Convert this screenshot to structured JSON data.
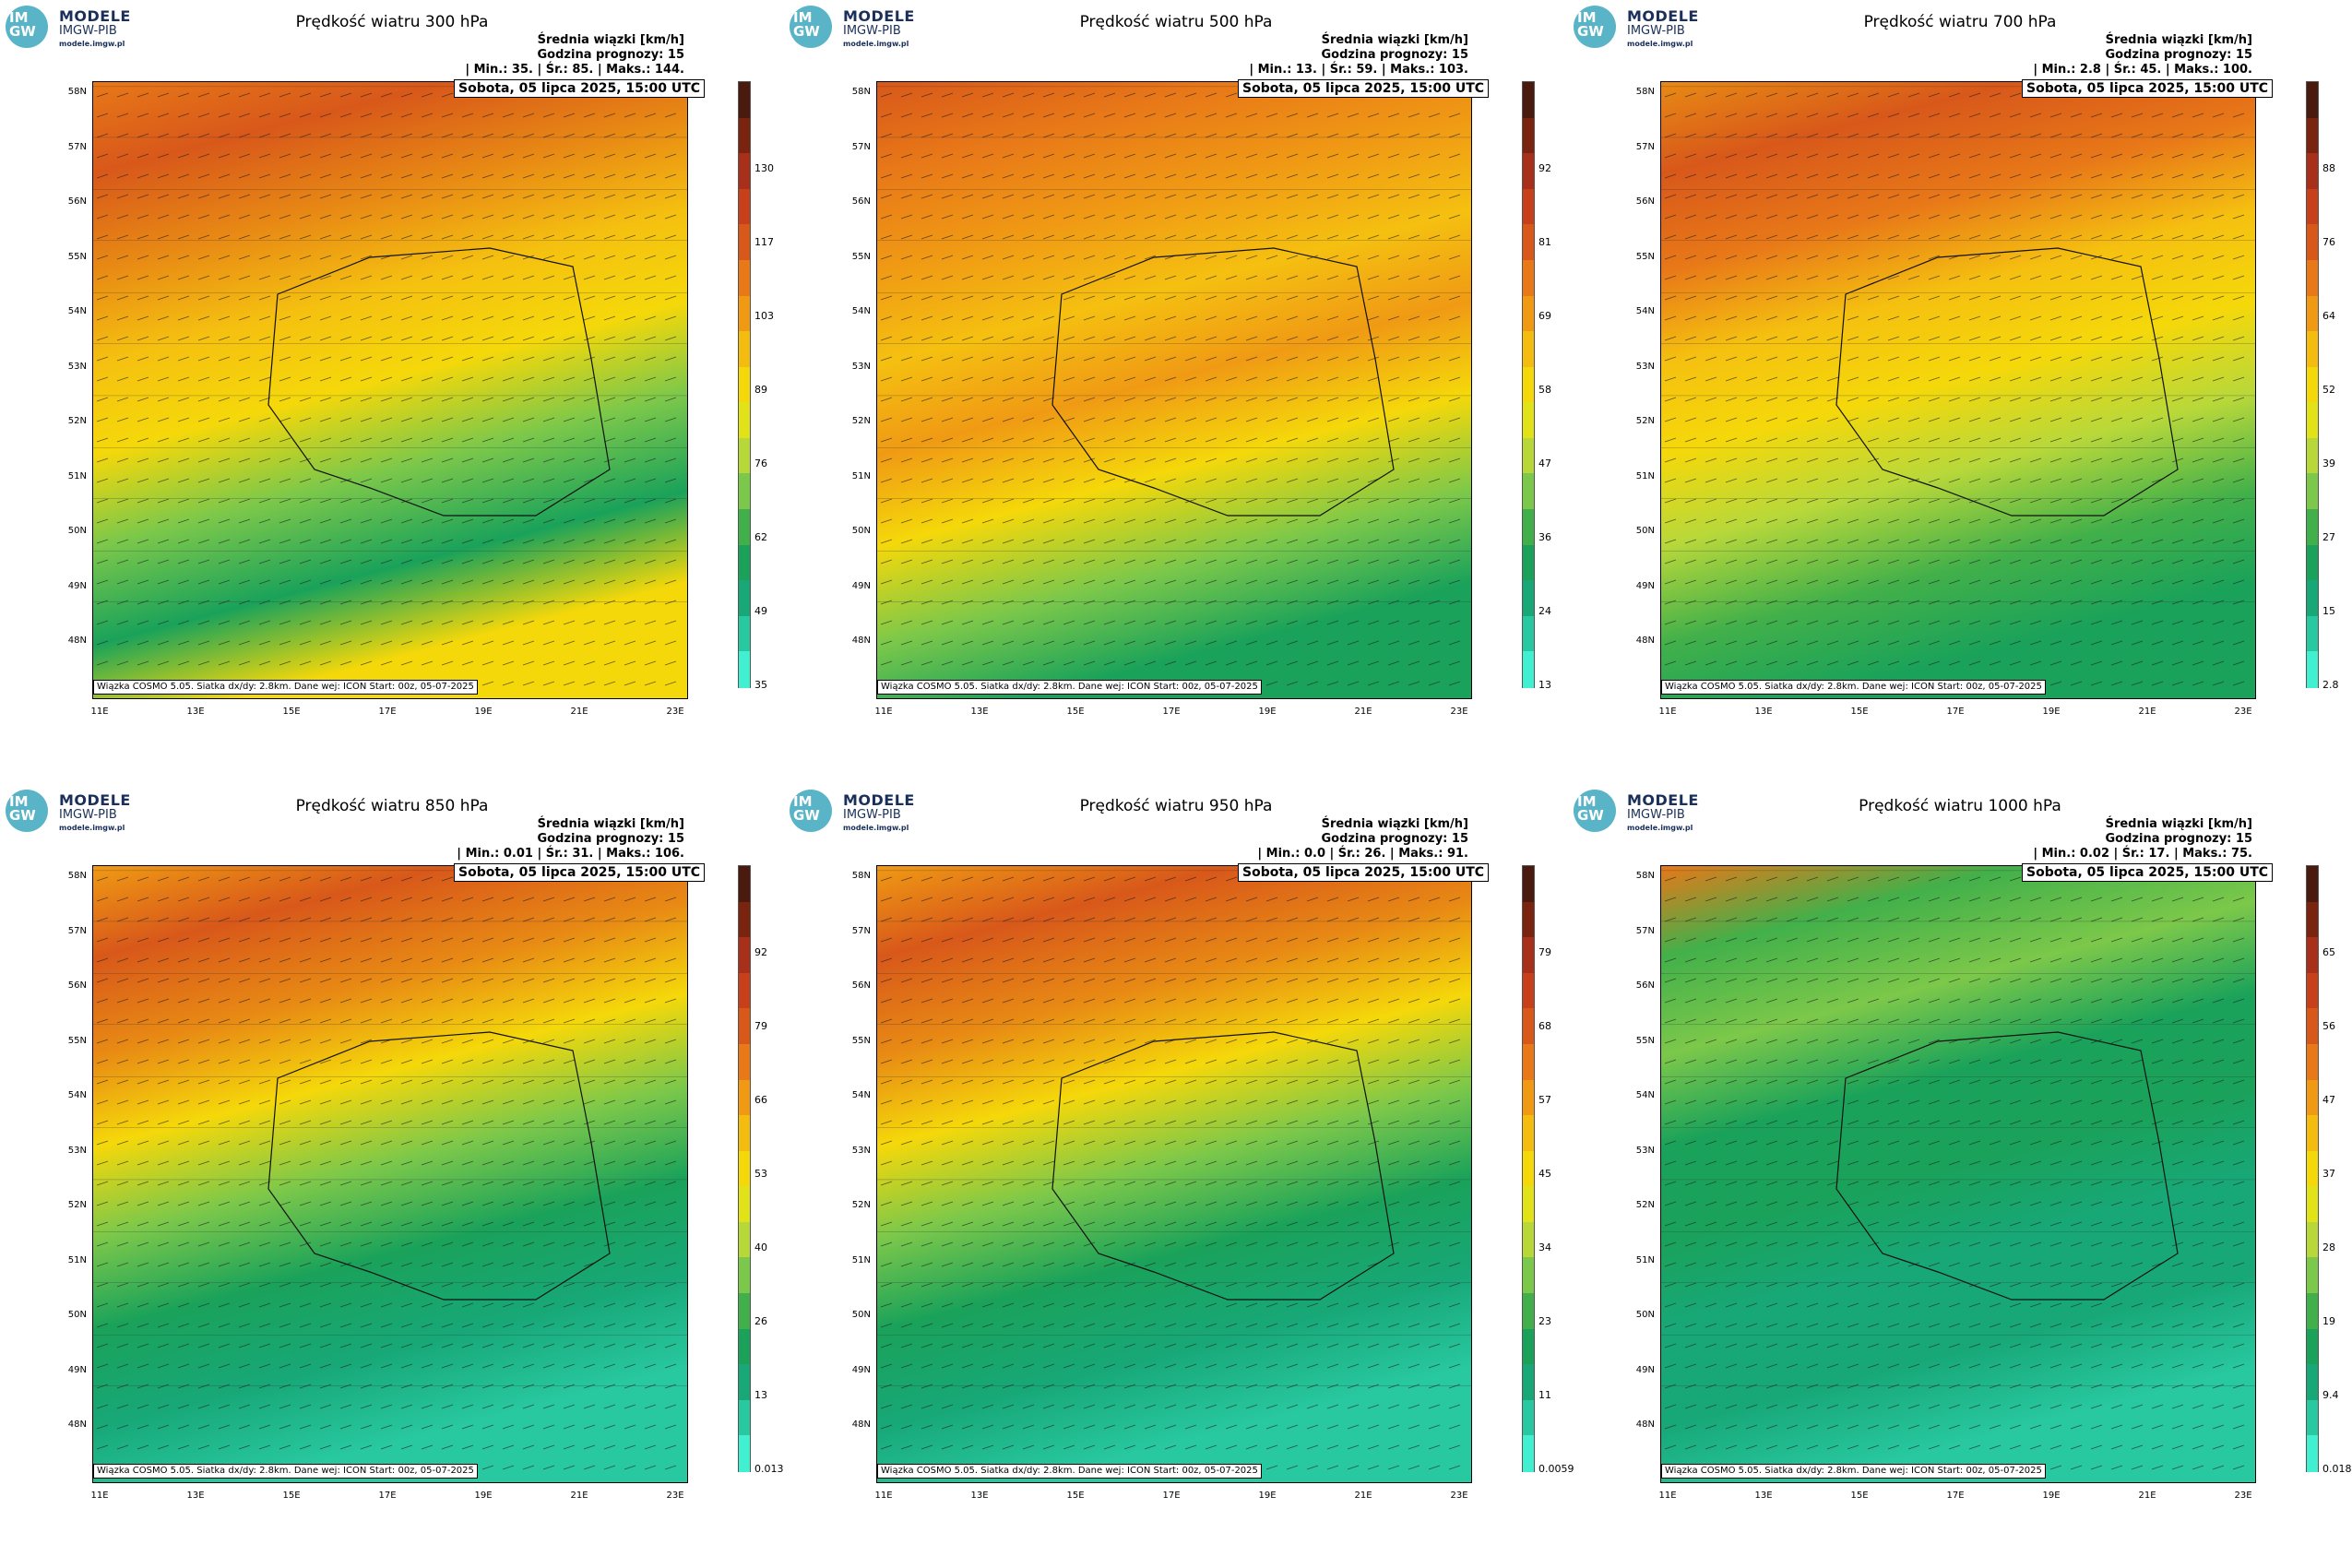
{
  "logo": {
    "brand": "MODELE",
    "org": "IMGW-PIB",
    "url": "modele.imgw.pl",
    "mark": "IM GW"
  },
  "common": {
    "mean_label": "Średnia wiązki [km/h]",
    "forecast_hour": "Godzina prognozy: 15",
    "date": "Sobota, 05 lipca 2025, 15:00 UTC",
    "footer": "Wiązka COSMO 5.05. Siatka dx/dy: 2.8km. Dane wej: ICON Start: 00z, 05-07-2025",
    "lat_labels": [
      "58N",
      "57N",
      "56N",
      "55N",
      "54N",
      "53N",
      "52N",
      "51N",
      "50N",
      "49N",
      "48N"
    ],
    "lon_labels": [
      "11E",
      "13E",
      "15E",
      "17E",
      "19E",
      "21E",
      "23E"
    ]
  },
  "panels": [
    {
      "title": "Prędkość wiatru 300 hPa",
      "stats": "| Min.: 35. | Śr.: 85. | Maks.: 144.",
      "ticks": [
        "130",
        "117",
        "103",
        "89",
        "76",
        "62",
        "49",
        "35"
      ]
    },
    {
      "title": "Prędkość wiatru 500 hPa",
      "stats": "| Min.: 13. | Śr.: 59. | Maks.: 103.",
      "ticks": [
        "92",
        "81",
        "69",
        "58",
        "47",
        "36",
        "24",
        "13"
      ]
    },
    {
      "title": "Prędkość wiatru 700 hPa",
      "stats": "| Min.: 2.8 | Śr.: 45. | Maks.: 100.",
      "ticks": [
        "88",
        "76",
        "64",
        "52",
        "39",
        "27",
        "15",
        "2.8"
      ]
    },
    {
      "title": "Prędkość wiatru 850 hPa",
      "stats": "| Min.: 0.01 | Śr.: 31. | Maks.: 106.",
      "ticks": [
        "92",
        "79",
        "66",
        "53",
        "40",
        "26",
        "13",
        "0.013"
      ]
    },
    {
      "title": "Prędkość wiatru 950 hPa",
      "stats": "| Min.: 0.0 | Śr.: 26. | Maks.: 91.",
      "ticks": [
        "79",
        "68",
        "57",
        "45",
        "34",
        "23",
        "11",
        "0.0059"
      ]
    },
    {
      "title": "Prędkość wiatru 1000 hPa",
      "stats": "| Min.: 0.02 | Śr.: 17. | Maks.: 75.",
      "ticks": [
        "65",
        "56",
        "47",
        "37",
        "28",
        "19",
        "9.4",
        "0.018"
      ]
    }
  ],
  "colors": {
    "dark": "#5a1f10",
    "red": "#c8401a",
    "orange": "#e88a14",
    "yellow": "#f5d80a",
    "lightgreen": "#7cc84a",
    "green": "#1aa25a",
    "cyan": "#40f0d0"
  }
}
